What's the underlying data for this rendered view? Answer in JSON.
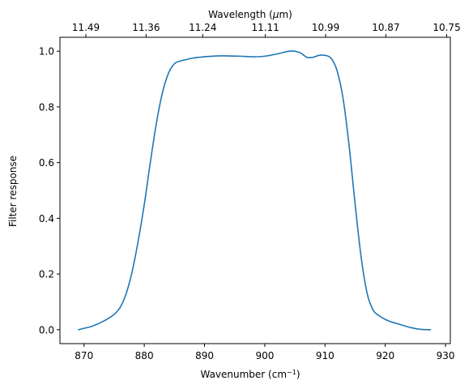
{
  "chart_data": {
    "type": "line",
    "title": "",
    "xlabel": "Wavenumber (cm",
    "xlabel_sup": "−1",
    "xlabel_end": ")",
    "ylabel": "Filter response",
    "top_xlabel": "Wavelength (",
    "top_xlabel_mu": "μ",
    "top_xlabel_end": "m)",
    "xlim": [
      866,
      930.8
    ],
    "ylim": [
      -0.05,
      1.05
    ],
    "xticks": [
      870,
      880,
      890,
      900,
      910,
      920,
      930
    ],
    "xtick_labels": [
      "870",
      "880",
      "890",
      "900",
      "910",
      "920",
      "930"
    ],
    "yticks": [
      0.0,
      0.2,
      0.4,
      0.6,
      0.8,
      1.0
    ],
    "ytick_labels": [
      "0.0",
      "0.2",
      "0.4",
      "0.6",
      "0.8",
      "1.0"
    ],
    "top_xticks": [
      {
        "wavenumber": 870.3,
        "label": "11.49"
      },
      {
        "wavenumber": 880.3,
        "label": "11.36"
      },
      {
        "wavenumber": 889.7,
        "label": "11.24"
      },
      {
        "wavenumber": 900.1,
        "label": "11.11"
      },
      {
        "wavenumber": 910.1,
        "label": "10.99"
      },
      {
        "wavenumber": 920.1,
        "label": "10.87"
      },
      {
        "wavenumber": 930.2,
        "label": "10.75"
      }
    ],
    "grid": false,
    "series": [
      {
        "color": "#1f77b4",
        "x": [
          869.1,
          870.0,
          871.0,
          872.0,
          873.0,
          874.0,
          875.0,
          876.0,
          877.0,
          878.0,
          879.0,
          880.0,
          881.0,
          882.0,
          883.0,
          884.0,
          885.0,
          886.0,
          887.0,
          888.0,
          889.0,
          890.0,
          892.0,
          894.0,
          896.0,
          898.0,
          900.0,
          902.0,
          904.0,
          905.0,
          906.0,
          907.0,
          908.0,
          909.0,
          910.0,
          911.0,
          912.0,
          913.0,
          914.0,
          915.0,
          916.0,
          917.0,
          918.0,
          919.0,
          920.0,
          921.0,
          922.0,
          923.0,
          924.0,
          925.0,
          926.0,
          927.0,
          927.5
        ],
        "y": [
          0.0,
          0.005,
          0.01,
          0.018,
          0.028,
          0.04,
          0.055,
          0.08,
          0.13,
          0.21,
          0.32,
          0.45,
          0.6,
          0.74,
          0.85,
          0.92,
          0.955,
          0.965,
          0.97,
          0.975,
          0.978,
          0.98,
          0.983,
          0.983,
          0.982,
          0.98,
          0.982,
          0.99,
          1.0,
          1.0,
          0.993,
          0.978,
          0.978,
          0.985,
          0.985,
          0.975,
          0.93,
          0.83,
          0.66,
          0.45,
          0.26,
          0.13,
          0.07,
          0.05,
          0.037,
          0.028,
          0.022,
          0.015,
          0.009,
          0.004,
          0.001,
          0.0,
          0.0
        ]
      }
    ]
  }
}
